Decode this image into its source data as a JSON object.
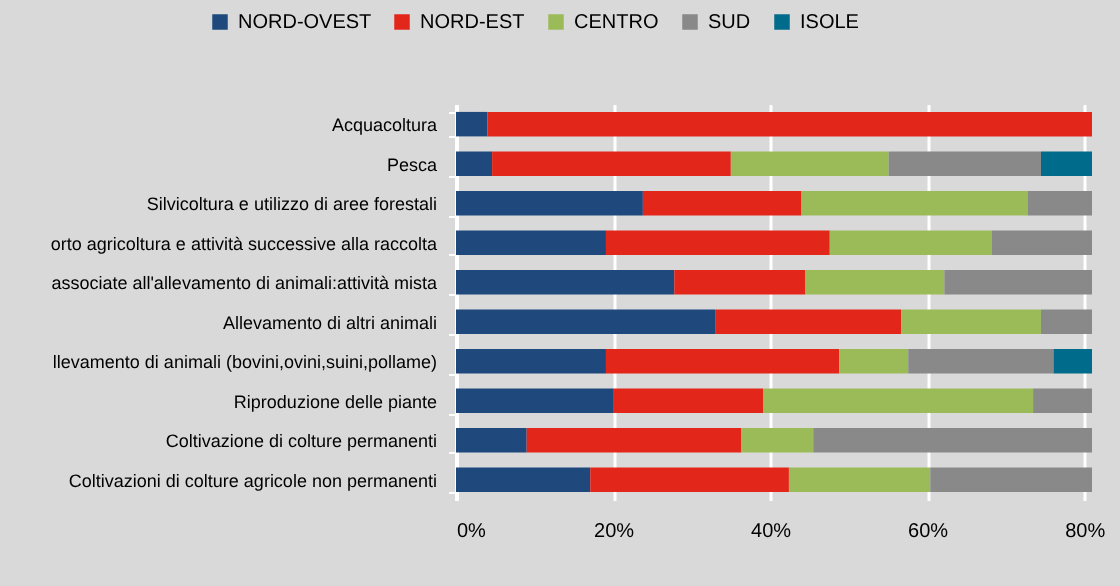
{
  "chart_data": {
    "type": "bar",
    "orientation": "horizontal",
    "stacked": true,
    "categories": [
      "Acquacoltura",
      "Pesca",
      "Silvicoltura e utilizzo di aree forestali",
      "orto agricoltura e attività successive alla raccolta",
      "associate all'allevamento di animali:attività mista",
      "Allevamento di altri animali",
      "llevamento di animali (bovini,ovini,suini,pollame)",
      "Riproduzione delle piante",
      "Coltivazione di colture permanenti",
      "Coltivazioni di colture agricole non permanenti"
    ],
    "series": [
      {
        "name": "NORD-OVEST",
        "color": "#1f497d",
        "values": [
          4,
          4.6,
          23.8,
          19.1,
          27.8,
          33,
          19.1,
          20.1,
          9,
          17.1
        ]
      },
      {
        "name": "NORD-EST",
        "color": "#e3261a",
        "values": [
          77,
          30.4,
          20.2,
          28.5,
          16.7,
          23.7,
          29.7,
          19,
          27.3,
          25.3
        ]
      },
      {
        "name": "CENTRO",
        "color": "#9bbb59",
        "values": [
          null,
          20.1,
          28.8,
          20.6,
          17.7,
          17.8,
          8.8,
          34.4,
          9.2,
          18
        ]
      },
      {
        "name": "SUD",
        "color": "#898989",
        "values": [
          null,
          19.4,
          8.2,
          12.8,
          18.8,
          6.5,
          18.5,
          7.5,
          35.5,
          20.6
        ]
      },
      {
        "name": "ISOLE",
        "color": "#006b8a",
        "values": [
          null,
          6.5,
          null,
          null,
          null,
          null,
          4.9,
          null,
          null,
          null
        ]
      }
    ],
    "xlim": [
      0,
      81
    ],
    "xticks": [
      {
        "value": 0,
        "label": "0%"
      },
      {
        "value": 20,
        "label": "20%"
      },
      {
        "value": 40,
        "label": "40%"
      },
      {
        "value": 60,
        "label": "60%"
      },
      {
        "value": 80,
        "label": "80%"
      }
    ],
    "grid": "x",
    "legend": "top"
  }
}
